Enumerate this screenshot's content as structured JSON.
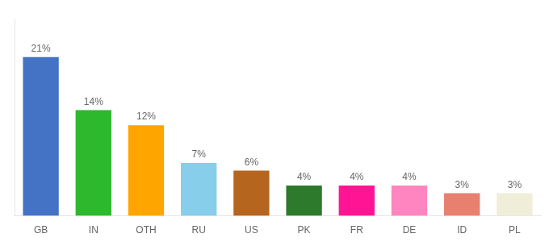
{
  "chart_data": {
    "type": "bar",
    "categories": [
      "GB",
      "IN",
      "OTH",
      "RU",
      "US",
      "PK",
      "FR",
      "DE",
      "ID",
      "PL"
    ],
    "values": [
      21,
      14,
      12,
      7,
      6,
      4,
      4,
      4,
      3,
      3
    ],
    "value_labels": [
      "21%",
      "14%",
      "12%",
      "7%",
      "6%",
      "4%",
      "4%",
      "4%",
      "3%",
      "3%"
    ],
    "colors": [
      "#4472c4",
      "#2db82d",
      "#ffa500",
      "#87ceeb",
      "#b5651d",
      "#2d7a2d",
      "#ff1493",
      "#ff85c0",
      "#e88070",
      "#f0edd8"
    ],
    "ylim": [
      0,
      26
    ],
    "grid": false,
    "data_labels": true,
    "tick_labels": "x"
  }
}
